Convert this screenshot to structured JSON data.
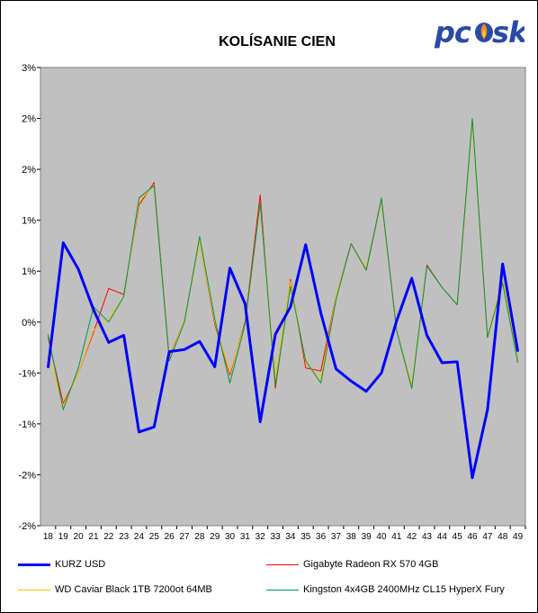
{
  "brand": {
    "logo_text": "pc⁠sk",
    "logo_colors": {
      "text": "#2a4aa8",
      "flame": "#f08a1c"
    }
  },
  "chart_data": {
    "type": "line",
    "title": "KOLÍSANIE CIEN",
    "xlabel": "",
    "ylabel": "",
    "grid": false,
    "legend_position": "bottom",
    "plot_background": "#c0c0c0",
    "x": [
      18,
      19,
      20,
      21,
      22,
      23,
      24,
      25,
      26,
      27,
      28,
      29,
      30,
      31,
      32,
      33,
      34,
      35,
      36,
      37,
      38,
      39,
      40,
      41,
      42,
      43,
      44,
      45,
      46,
      47,
      48,
      49
    ],
    "y_tick_labels": [
      "3%",
      "2%",
      "2%",
      "1%",
      "1%",
      "0%",
      "-1%",
      "-1%",
      "-2%",
      "-2%"
    ],
    "ylim": [
      -2.0,
      2.5
    ],
    "series": [
      {
        "name": "KURZ USD",
        "color": "#0000ff",
        "values": [
          -0.45,
          0.78,
          0.52,
          0.12,
          -0.2,
          -0.13,
          -1.08,
          -1.03,
          -0.29,
          -0.27,
          -0.19,
          -0.44,
          0.53,
          0.18,
          -0.98,
          -0.12,
          0.15,
          0.76,
          0.09,
          -0.46,
          -0.58,
          -0.68,
          -0.5,
          0.01,
          0.43,
          -0.13,
          -0.4,
          -0.39,
          -1.53,
          -0.86,
          0.57,
          -0.29
        ]
      },
      {
        "name": "Gigabyte Radeon RX 570 4GB",
        "color": "#ff0000",
        "values": [
          -0.15,
          -0.8,
          -0.5,
          -0.1,
          0.33,
          0.27,
          1.15,
          1.37,
          -0.35,
          0.02,
          0.8,
          -0.02,
          -0.52,
          0.0,
          1.25,
          -0.65,
          0.42,
          -0.45,
          -0.48,
          0.25,
          0.77,
          0.51,
          1.2,
          -0.08,
          -0.65,
          0.56,
          0.34,
          0.17,
          1.98,
          -0.15,
          0.4,
          -0.38
        ]
      },
      {
        "name": "WD Caviar Black 1TB 7200ot 64MB",
        "color": "#ffc000",
        "values": [
          -0.3,
          -0.82,
          -0.5,
          -0.08,
          0.03,
          0.25,
          1.18,
          1.35,
          -0.36,
          0.02,
          0.8,
          0.0,
          -0.5,
          -0.02,
          1.17,
          -0.55,
          0.4,
          -0.4,
          -0.56,
          0.25,
          0.76,
          0.53,
          1.2,
          -0.08,
          -0.62,
          0.55,
          0.34,
          0.17,
          1.96,
          -0.14,
          0.42,
          -0.38
        ]
      },
      {
        "name": "Kingston 4x4GB 2400MHz CL15 HyperX Fury",
        "color": "#009944",
        "values": [
          -0.12,
          -0.86,
          -0.45,
          0.15,
          0.0,
          0.25,
          1.22,
          1.34,
          -0.38,
          0.0,
          0.84,
          0.03,
          -0.6,
          -0.02,
          1.17,
          -0.62,
          0.35,
          -0.38,
          -0.6,
          0.22,
          0.77,
          0.51,
          1.22,
          -0.08,
          -0.65,
          0.55,
          0.34,
          0.17,
          2.0,
          -0.15,
          0.38,
          -0.4
        ]
      }
    ]
  }
}
